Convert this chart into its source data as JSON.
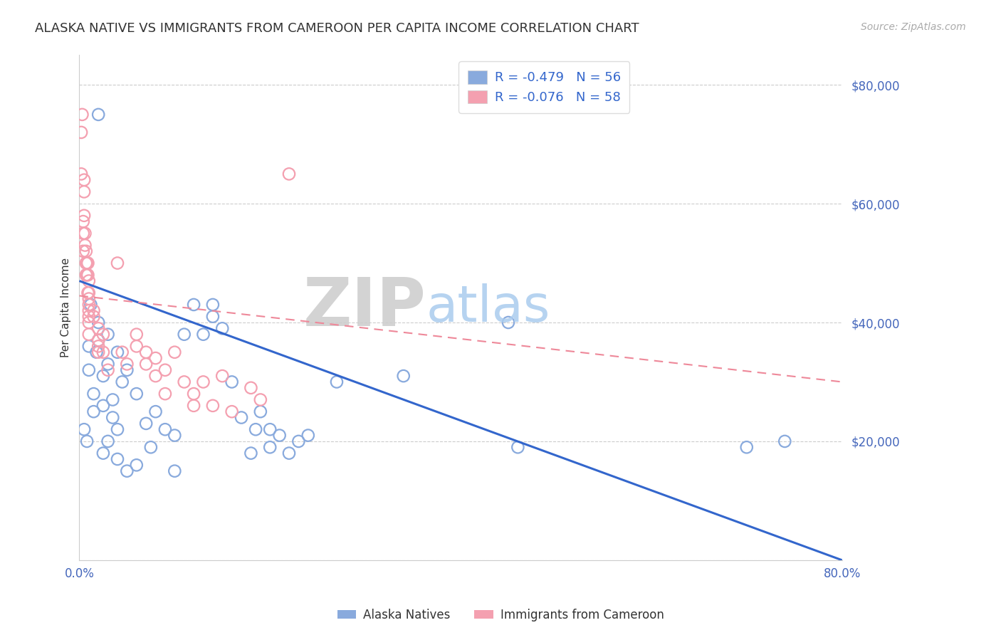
{
  "title": "ALASKA NATIVE VS IMMIGRANTS FROM CAMEROON PER CAPITA INCOME CORRELATION CHART",
  "source": "Source: ZipAtlas.com",
  "ylabel": "Per Capita Income",
  "xlim": [
    0.0,
    0.8
  ],
  "ylim": [
    0,
    85000
  ],
  "blue_R": -0.479,
  "blue_N": 56,
  "pink_R": -0.076,
  "pink_N": 58,
  "blue_color": "#89AADD",
  "pink_color": "#F4A0B0",
  "blue_line_color": "#3366CC",
  "pink_line_color": "#EE8899",
  "axis_tick_color": "#4466BB",
  "title_color": "#333333",
  "source_color": "#AAAAAA",
  "watermark_zip_color": "#CCCCCC",
  "watermark_atlas_color": "#AACCEE",
  "background_color": "#FFFFFF",
  "grid_color": "#CCCCCC",
  "legend_text_color": "#333333",
  "legend_value_color": "#3366CC",
  "blue_trend_x": [
    0.0,
    0.8
  ],
  "blue_trend_y": [
    47000,
    0
  ],
  "pink_trend_x": [
    0.0,
    0.8
  ],
  "pink_trend_y": [
    44500,
    30000
  ],
  "blue_x": [
    0.005,
    0.008,
    0.01,
    0.01,
    0.012,
    0.015,
    0.015,
    0.018,
    0.02,
    0.02,
    0.02,
    0.025,
    0.025,
    0.025,
    0.03,
    0.03,
    0.03,
    0.035,
    0.035,
    0.04,
    0.04,
    0.04,
    0.045,
    0.05,
    0.05,
    0.06,
    0.06,
    0.07,
    0.075,
    0.08,
    0.09,
    0.1,
    0.1,
    0.11,
    0.12,
    0.13,
    0.14,
    0.14,
    0.15,
    0.16,
    0.17,
    0.18,
    0.185,
    0.19,
    0.2,
    0.2,
    0.21,
    0.22,
    0.23,
    0.24,
    0.27,
    0.34,
    0.45,
    0.46,
    0.7,
    0.74
  ],
  "blue_y": [
    22000,
    20000,
    32000,
    36000,
    43000,
    25000,
    28000,
    35000,
    37000,
    40000,
    75000,
    18000,
    26000,
    31000,
    33000,
    38000,
    20000,
    24000,
    27000,
    35000,
    17000,
    22000,
    30000,
    32000,
    15000,
    28000,
    16000,
    23000,
    19000,
    25000,
    22000,
    15000,
    21000,
    38000,
    43000,
    38000,
    41000,
    43000,
    39000,
    30000,
    24000,
    18000,
    22000,
    25000,
    19000,
    22000,
    21000,
    18000,
    20000,
    21000,
    30000,
    31000,
    40000,
    19000,
    19000,
    20000
  ],
  "pink_x": [
    0.002,
    0.002,
    0.003,
    0.004,
    0.004,
    0.004,
    0.005,
    0.005,
    0.005,
    0.006,
    0.006,
    0.007,
    0.007,
    0.007,
    0.008,
    0.008,
    0.009,
    0.009,
    0.009,
    0.01,
    0.01,
    0.01,
    0.01,
    0.01,
    0.01,
    0.01,
    0.01,
    0.015,
    0.015,
    0.02,
    0.02,
    0.02,
    0.02,
    0.025,
    0.025,
    0.03,
    0.04,
    0.045,
    0.05,
    0.06,
    0.06,
    0.07,
    0.07,
    0.08,
    0.08,
    0.09,
    0.09,
    0.1,
    0.11,
    0.12,
    0.12,
    0.13,
    0.14,
    0.15,
    0.16,
    0.18,
    0.19,
    0.22
  ],
  "pink_y": [
    72000,
    65000,
    75000,
    57000,
    55000,
    52000,
    64000,
    62000,
    58000,
    55000,
    53000,
    52000,
    50000,
    48000,
    50000,
    48000,
    45000,
    50000,
    48000,
    47000,
    45000,
    44000,
    43000,
    42000,
    41000,
    40000,
    38000,
    42000,
    41000,
    39000,
    37000,
    36000,
    35000,
    38000,
    35000,
    32000,
    50000,
    35000,
    33000,
    38000,
    36000,
    35000,
    33000,
    34000,
    31000,
    32000,
    28000,
    35000,
    30000,
    28000,
    26000,
    30000,
    26000,
    31000,
    25000,
    29000,
    27000,
    65000
  ]
}
